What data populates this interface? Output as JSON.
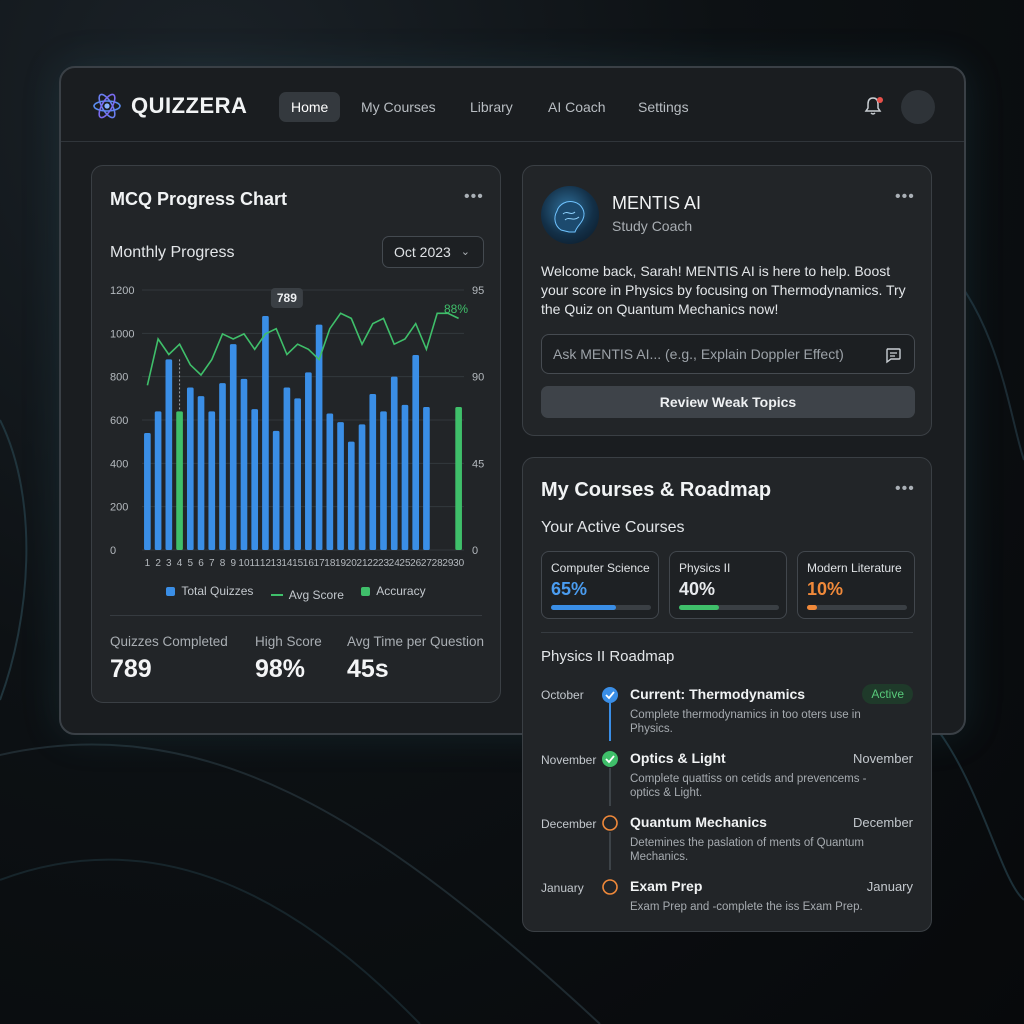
{
  "app": {
    "name": "QUIZZERA"
  },
  "nav": {
    "items": [
      "Home",
      "My Courses",
      "Library",
      "AI Coach",
      "Settings"
    ],
    "active": "Home"
  },
  "chart_card": {
    "title": "MCQ Progress Chart",
    "subtitle": "Monthly Progress",
    "dropdown_value": "Oct 2023",
    "legend": [
      "Total Quizzes",
      "Avg Score",
      "Accuracy"
    ],
    "stats": [
      {
        "label": "Quizzes Completed",
        "value": "789"
      },
      {
        "label": "High Score",
        "value": "98%"
      },
      {
        "label": "Avg Time per Question",
        "value": "45s"
      }
    ]
  },
  "chart_data": {
    "type": "bar",
    "categories": [
      "1",
      "2",
      "3",
      "4",
      "5",
      "6",
      "7",
      "8",
      "9",
      "10",
      "11",
      "12",
      "13",
      "14",
      "15",
      "16",
      "17",
      "18",
      "19",
      "20",
      "21",
      "22",
      "23",
      "24",
      "25",
      "26",
      "27",
      "28",
      "29",
      "30"
    ],
    "series": [
      {
        "name": "Total Quizzes",
        "axis": "left",
        "type": "bar",
        "values": [
          540,
          640,
          880,
          640,
          750,
          710,
          640,
          770,
          950,
          790,
          650,
          1080,
          550,
          750,
          700,
          820,
          1040,
          630,
          590,
          500,
          580,
          720,
          640,
          800,
          670,
          900,
          660,
          null,
          null,
          null
        ]
      },
      {
        "name": "Accuracy",
        "axis": "left",
        "type": "bar",
        "highlight_categories": [
          "4",
          "30"
        ],
        "values": [
          null,
          null,
          null,
          640,
          null,
          null,
          null,
          null,
          null,
          null,
          null,
          null,
          null,
          null,
          null,
          null,
          null,
          null,
          null,
          null,
          null,
          null,
          null,
          null,
          null,
          null,
          null,
          null,
          null,
          660
        ]
      },
      {
        "name": "Avg Score",
        "axis": "right",
        "type": "line",
        "values": [
          79,
          88,
          85,
          87,
          83,
          81,
          84,
          89,
          88,
          89,
          86,
          89,
          90,
          85,
          87,
          86,
          84,
          90,
          93,
          92,
          87,
          91,
          92,
          87,
          88,
          91,
          86,
          93,
          93,
          92
        ]
      }
    ],
    "y_left_ticks": [
      "0",
      "200",
      "400",
      "600",
      "800",
      "1000",
      "1200"
    ],
    "y_left_range": [
      0,
      1200
    ],
    "y_right_ticks": [
      "0",
      "45",
      "90",
      "95"
    ],
    "annotations": [
      {
        "text": "789",
        "category": "14"
      },
      {
        "text": "88%",
        "series": "Avg Score"
      }
    ],
    "grid": true,
    "legend_position": "bottom",
    "colors": {
      "bar": "#3a8ee6",
      "accent_bar": "#3fbf6a",
      "line": "#3fbf6a"
    }
  },
  "ai_card": {
    "name": "MENTIS AI",
    "role": "Study Coach",
    "message": "Welcome back, Sarah! MENTIS AI is here to help. Boost your score in Physics by focusing on Thermodynamics. Try the Quiz on Quantum Mechanics now!",
    "input_placeholder": "Ask MENTIS AI... (e.g., Explain Doppler Effect)",
    "button_label": "Review Weak Topics"
  },
  "courses_card": {
    "title": "My Courses & Roadmap",
    "active_heading": "Your Active Courses",
    "courses": [
      {
        "name": "Computer Science",
        "pct": "65%",
        "progress": 0.65,
        "color": "#3a8ee6"
      },
      {
        "name": "Physics II",
        "pct": "40%",
        "progress": 0.4,
        "color": "#3fbf6a"
      },
      {
        "name": "Modern Literature",
        "pct": "10%",
        "progress": 0.1,
        "color": "#f0893a"
      }
    ],
    "roadmap_heading": "Physics II Roadmap",
    "roadmap": [
      {
        "month": "October",
        "title": "Current: Thermodynamics",
        "right": "Active",
        "desc": "Complete thermodynamics in too oters use in Physics.",
        "status": "current"
      },
      {
        "month": "November",
        "title": "Optics & Light",
        "right": "November",
        "desc": "Complete quattiss on cetids and prevencems - optics & Light.",
        "status": "done"
      },
      {
        "month": "December",
        "title": "Quantum Mechanics",
        "right": "December",
        "desc": "Detemines the paslation of ments of Quantum Mechanics.",
        "status": "upcoming"
      },
      {
        "month": "January",
        "title": "Exam Prep",
        "right": "January",
        "desc": "Exam Prep and -complete the iss Exam Prep.",
        "status": "upcoming"
      }
    ]
  }
}
